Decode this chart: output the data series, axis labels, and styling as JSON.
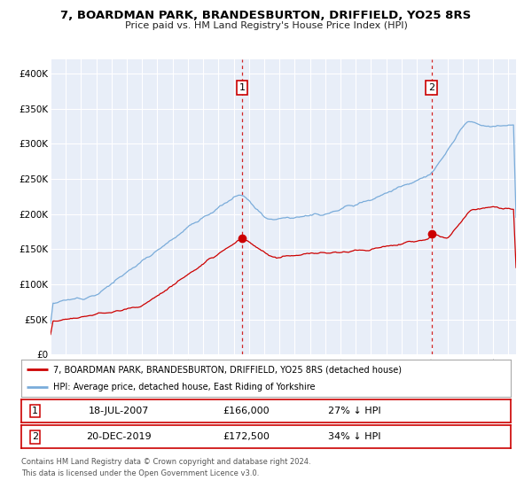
{
  "title": "7, BOARDMAN PARK, BRANDESBURTON, DRIFFIELD, YO25 8RS",
  "subtitle": "Price paid vs. HM Land Registry's House Price Index (HPI)",
  "ylim": [
    0,
    420000
  ],
  "xlim_start": 1995.0,
  "xlim_end": 2025.5,
  "yticks": [
    0,
    50000,
    100000,
    150000,
    200000,
    250000,
    300000,
    350000,
    400000
  ],
  "ytick_labels": [
    "£0",
    "£50K",
    "£100K",
    "£150K",
    "£200K",
    "£250K",
    "£300K",
    "£350K",
    "£400K"
  ],
  "xticks": [
    1995,
    1996,
    1997,
    1998,
    1999,
    2000,
    2001,
    2002,
    2003,
    2004,
    2005,
    2006,
    2007,
    2008,
    2009,
    2010,
    2011,
    2012,
    2013,
    2014,
    2015,
    2016,
    2017,
    2018,
    2019,
    2020,
    2021,
    2022,
    2023,
    2024,
    2025
  ],
  "bg_color": "#e8eef8",
  "red_line_color": "#cc0000",
  "blue_line_color": "#7aacda",
  "marker1_date": 2007.54,
  "marker1_value": 166000,
  "marker2_date": 2019.96,
  "marker2_value": 172500,
  "vline_color": "#cc0000",
  "legend_line1": "7, BOARDMAN PARK, BRANDESBURTON, DRIFFIELD, YO25 8RS (detached house)",
  "legend_line2": "HPI: Average price, detached house, East Riding of Yorkshire",
  "table_row1": [
    "1",
    "18-JUL-2007",
    "£166,000",
    "27% ↓ HPI"
  ],
  "table_row2": [
    "2",
    "20-DEC-2019",
    "£172,500",
    "34% ↓ HPI"
  ],
  "footer1": "Contains HM Land Registry data © Crown copyright and database right 2024.",
  "footer2": "This data is licensed under the Open Government Licence v3.0."
}
